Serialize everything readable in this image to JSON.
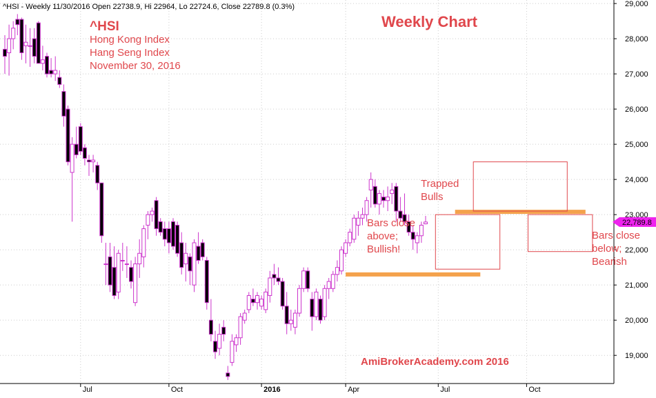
{
  "header": {
    "info": "^HSI - Weekly 11/30/2016 Open 22738.9, Hi 22964, Lo 22724.6, Close 22789.8 (0.3%)"
  },
  "annotations": {
    "symbol": "^HSI",
    "line1": "Hong Kong Index",
    "line2": "Hang Seng Index",
    "line3": "November 30, 2016",
    "title": "Weekly Chart",
    "trapped_1": "Trapped",
    "trapped_2": "Bulls",
    "above_1": "Bars close",
    "above_2": "above;",
    "above_3": "Bullish!",
    "below_1": "Bars close",
    "below_2": "below;",
    "below_3": "Bearish",
    "watermark": "AmiBrokerAcademy.com  2016"
  },
  "colors": {
    "up": "#cc33cc",
    "down": "#000000",
    "annotation": "#e0474c",
    "support_line": "#f4a24c",
    "grid": "#cccccc",
    "price_marker": "#ee22ee"
  },
  "chart_data": {
    "type": "candlestick",
    "ylim": [
      18200,
      29100
    ],
    "ytick_values": [
      19000,
      20000,
      21000,
      22000,
      23000,
      24000,
      25000,
      26000,
      27000,
      28000,
      29000
    ],
    "ytick_labels": [
      "19,000",
      "20,000",
      "21,000",
      "22,000",
      "23,000",
      "24,000",
      "25,000",
      "26,000",
      "27,000",
      "28,000",
      "29,000"
    ],
    "xtick_labels": [
      "Jul",
      "Oct",
      "2016",
      "Apr",
      "Jul",
      "Oct"
    ],
    "xtick_index": [
      18,
      39,
      61,
      81,
      103,
      124
    ],
    "last_close_label": "22,789.8",
    "last_close": 22789.8,
    "levels": [
      {
        "name": "support",
        "value": 21300,
        "from_index": 81,
        "to_index": 113
      },
      {
        "name": "resistance",
        "value": 23080,
        "from_index": 107,
        "to_index": 138
      }
    ],
    "boxes": [
      {
        "name": "bullish-box",
        "from_index": 103,
        "to_index": 117,
        "low": 21450,
        "high": 23000
      },
      {
        "name": "trapped-box",
        "from_index": 112,
        "to_index": 133,
        "low": 23100,
        "high": 24500
      },
      {
        "name": "bearish-box",
        "from_index": 125,
        "to_index": 139,
        "low": 21950,
        "high": 23000
      }
    ],
    "ohlc": [
      [
        27700,
        28100,
        27000,
        27500
      ],
      [
        27600,
        28400,
        26950,
        28000
      ],
      [
        28000,
        28500,
        27700,
        28300
      ],
      [
        28550,
        28700,
        28100,
        28400
      ],
      [
        28550,
        28600,
        27400,
        27600
      ],
      [
        27800,
        28400,
        27300,
        27900
      ],
      [
        27800,
        28300,
        27200,
        27800
      ],
      [
        28000,
        28300,
        27300,
        27500
      ],
      [
        28450,
        28500,
        27300,
        27300
      ],
      [
        27300,
        27800,
        27100,
        27400
      ],
      [
        27500,
        27600,
        26900,
        27000
      ],
      [
        27100,
        27450,
        26900,
        27000
      ],
      [
        27000,
        27500,
        26800,
        27100
      ],
      [
        26900,
        27100,
        26600,
        26700
      ],
      [
        26500,
        26700,
        25500,
        25800
      ],
      [
        26000,
        26100,
        24400,
        24500
      ],
      [
        24200,
        25200,
        22800,
        25000
      ],
      [
        25000,
        25500,
        24600,
        24700
      ],
      [
        25500,
        25600,
        24700,
        24800
      ],
      [
        24900,
        25000,
        24400,
        24600
      ],
      [
        24550,
        24700,
        24100,
        24500
      ],
      [
        24500,
        24700,
        24200,
        24550
      ],
      [
        24400,
        24500,
        23700,
        23900
      ],
      [
        23900,
        23900,
        22200,
        22400
      ],
      [
        21600,
        22200,
        21000,
        21600
      ],
      [
        21800,
        22200,
        20800,
        21000
      ],
      [
        21500,
        22100,
        20600,
        20700
      ],
      [
        20800,
        22000,
        20600,
        21900
      ],
      [
        21700,
        22200,
        21400,
        21700
      ],
      [
        21600,
        22100,
        21200,
        21600
      ],
      [
        21500,
        21700,
        20900,
        21100
      ],
      [
        20500,
        21800,
        20400,
        21600
      ],
      [
        21600,
        22300,
        21200,
        21900
      ],
      [
        21800,
        22700,
        21500,
        22600
      ],
      [
        22700,
        23100,
        22300,
        23000
      ],
      [
        23000,
        23200,
        22800,
        23100
      ],
      [
        23400,
        23500,
        22400,
        22600
      ],
      [
        22800,
        22900,
        22400,
        22500
      ],
      [
        22600,
        22800,
        22100,
        22300
      ],
      [
        22600,
        22800,
        21900,
        22200
      ],
      [
        22800,
        22900,
        22000,
        22100
      ],
      [
        22700,
        22800,
        21800,
        21900
      ],
      [
        22200,
        22500,
        21300,
        21500
      ],
      [
        21600,
        22200,
        21100,
        21900
      ],
      [
        21800,
        21900,
        21000,
        21400
      ],
      [
        21000,
        22300,
        20800,
        22200
      ],
      [
        22100,
        22500,
        21600,
        21700
      ],
      [
        22200,
        22300,
        21700,
        21800
      ],
      [
        21700,
        21800,
        20300,
        20500
      ],
      [
        20000,
        20600,
        19400,
        19600
      ],
      [
        19400,
        19700,
        18900,
        19100
      ],
      [
        19200,
        19900,
        19000,
        19600
      ],
      [
        19800,
        20000,
        19400,
        19600
      ],
      [
        18500,
        18700,
        18300,
        18400
      ],
      [
        18800,
        19600,
        18700,
        19400
      ],
      [
        19300,
        19600,
        19100,
        19500
      ],
      [
        19500,
        20200,
        19300,
        20100
      ],
      [
        20000,
        20300,
        19900,
        20200
      ],
      [
        20300,
        20800,
        20200,
        20700
      ],
      [
        20600,
        20900,
        20400,
        20500
      ],
      [
        20500,
        20800,
        20300,
        20700
      ],
      [
        20400,
        20700,
        20300,
        20600
      ],
      [
        20300,
        20900,
        20200,
        20800
      ],
      [
        20700,
        21400,
        20500,
        21200
      ],
      [
        21300,
        21600,
        21000,
        21200
      ],
      [
        21200,
        21500,
        21000,
        21100
      ],
      [
        21100,
        21200,
        20300,
        20400
      ],
      [
        20400,
        20800,
        19600,
        19900
      ],
      [
        19900,
        20300,
        19700,
        20000
      ],
      [
        19800,
        20300,
        19600,
        20200
      ],
      [
        20200,
        21000,
        20100,
        20900
      ],
      [
        20900,
        21500,
        20800,
        21400
      ],
      [
        21400,
        21500,
        20800,
        20900
      ],
      [
        20600,
        20800,
        19700,
        20100
      ],
      [
        20100,
        20900,
        20000,
        20800
      ],
      [
        20600,
        20700,
        19900,
        20000
      ],
      [
        20100,
        21000,
        20000,
        20900
      ],
      [
        20900,
        21200,
        20600,
        21100
      ],
      [
        20900,
        21400,
        20800,
        21300
      ],
      [
        21300,
        21700,
        21100,
        21500
      ],
      [
        21400,
        22100,
        21300,
        22000
      ],
      [
        21900,
        22300,
        21800,
        22200
      ],
      [
        22200,
        22600,
        22100,
        22500
      ],
      [
        22300,
        23000,
        22200,
        22900
      ],
      [
        22700,
        23100,
        22400,
        22900
      ],
      [
        22900,
        23200,
        22700,
        23000
      ],
      [
        23000,
        23500,
        22800,
        23400
      ],
      [
        23700,
        24200,
        23200,
        24000
      ],
      [
        23800,
        24000,
        23200,
        23300
      ],
      [
        23300,
        23700,
        23000,
        23600
      ],
      [
        23500,
        23700,
        23200,
        23400
      ],
      [
        23400,
        23800,
        23100,
        23500
      ],
      [
        23600,
        23900,
        23300,
        23700
      ],
      [
        23800,
        23900,
        22800,
        23100
      ],
      [
        23100,
        23500,
        22800,
        22900
      ],
      [
        23000,
        23600,
        22700,
        22800
      ],
      [
        22800,
        23000,
        22400,
        22500
      ],
      [
        22500,
        22700,
        22000,
        22300
      ],
      [
        22200,
        22500,
        21900,
        22400
      ],
      [
        22400,
        22800,
        22200,
        22700
      ],
      [
        22738.9,
        22964,
        22724.6,
        22789.8
      ]
    ]
  }
}
